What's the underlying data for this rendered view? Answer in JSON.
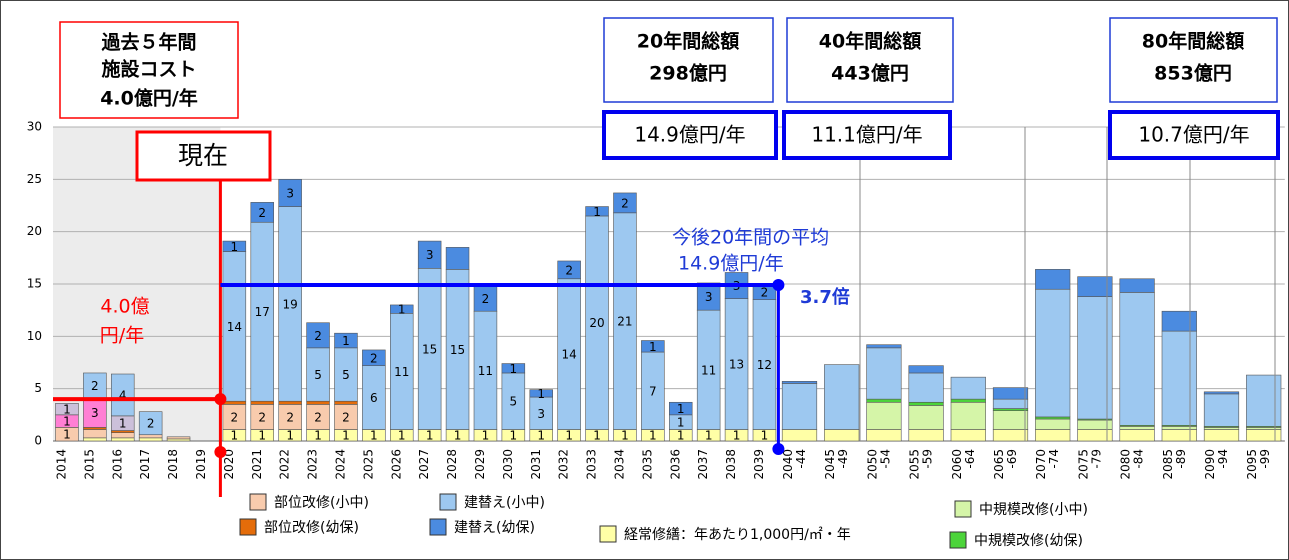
{
  "chart_data": {
    "type": "stacked-bar",
    "categories": [
      [
        "2014"
      ],
      [
        "2015"
      ],
      [
        "2016"
      ],
      [
        "2017"
      ],
      [
        "2018"
      ],
      [
        "2019"
      ],
      [
        "2020"
      ],
      [
        "2021"
      ],
      [
        "2022"
      ],
      [
        "2023"
      ],
      [
        "2024"
      ],
      [
        "2025"
      ],
      [
        "2026"
      ],
      [
        "2027"
      ],
      [
        "2028"
      ],
      [
        "2029"
      ],
      [
        "2030"
      ],
      [
        "2031"
      ],
      [
        "2032"
      ],
      [
        "2033"
      ],
      [
        "2034"
      ],
      [
        "2035"
      ],
      [
        "2036"
      ],
      [
        "2037"
      ],
      [
        "2038"
      ],
      [
        "2039"
      ],
      [
        "2040",
        "-44"
      ],
      [
        "2045",
        "-49"
      ],
      [
        "2050",
        "-54"
      ],
      [
        "2055",
        "-59"
      ],
      [
        "2060",
        "-64"
      ],
      [
        "2065",
        "-69"
      ],
      [
        "2070",
        "-74"
      ],
      [
        "2075",
        "-79"
      ],
      [
        "2080",
        "-84"
      ],
      [
        "2085",
        "-89"
      ],
      [
        "2090",
        "-94"
      ],
      [
        "2095",
        "-99"
      ]
    ],
    "series": [
      {
        "name": "経常修繕：年あたり1,000円/㎡・年",
        "color": "#ffffa6",
        "values": [
          0,
          0.3,
          0.3,
          0.3,
          0.2,
          0,
          1.1,
          1.1,
          1.1,
          1.1,
          1.1,
          1.1,
          1.1,
          1.1,
          1.1,
          1.1,
          1.1,
          1.1,
          1.1,
          1.1,
          1.1,
          1.1,
          1.1,
          1.1,
          1.1,
          1.1,
          1.1,
          1.1,
          1.1,
          1.1,
          1.1,
          1.1,
          1.1,
          1.1,
          1.1,
          1.1,
          1.1,
          1.1
        ],
        "value_labels": [
          null,
          null,
          null,
          null,
          null,
          null,
          "1",
          "1",
          "1",
          "1",
          "1",
          "1",
          "1",
          "1",
          "1",
          "1",
          "1",
          "1",
          "1",
          "1",
          "1",
          "1",
          "1",
          "1",
          "1",
          "1",
          null,
          null,
          null,
          null,
          null,
          null,
          null,
          null,
          null,
          null,
          null,
          null
        ]
      },
      {
        "name": "中規模改修(小中)",
        "color": "#d5f5a8",
        "values": [
          0,
          0,
          0,
          0,
          0,
          0,
          0,
          0,
          0,
          0,
          0,
          0,
          0,
          0,
          0,
          0,
          0,
          0,
          0,
          0,
          0,
          0,
          0,
          0,
          0,
          0,
          0,
          0,
          2.6,
          2.3,
          2.6,
          1.8,
          1.0,
          0.9,
          0.3,
          0.3,
          0.2,
          0.2
        ]
      },
      {
        "name": "中規模改修(幼保)",
        "color": "#4cd43a",
        "values": [
          0,
          0,
          0,
          0,
          0,
          0,
          0,
          0,
          0,
          0,
          0,
          0,
          0,
          0,
          0,
          0,
          0,
          0,
          0,
          0,
          0,
          0,
          0,
          0,
          0,
          0,
          0,
          0,
          0.3,
          0.3,
          0.3,
          0.2,
          0.2,
          0.1,
          0.1,
          0.1,
          0.1,
          0.1
        ]
      },
      {
        "name": "部位改修(小中)",
        "color": "#f8cbad",
        "values": [
          1.3,
          0.8,
          0.5,
          0.3,
          0.2,
          0,
          2.4,
          2.4,
          2.4,
          2.4,
          2.4,
          0,
          0,
          0,
          0,
          0,
          0,
          0,
          0,
          0,
          0,
          0,
          0,
          0,
          0,
          0,
          0,
          0,
          0,
          0,
          0,
          0,
          0,
          0,
          0,
          0,
          0,
          0
        ],
        "value_labels": [
          "1",
          null,
          null,
          null,
          null,
          null,
          "2",
          "2",
          "2",
          "2",
          "2",
          null,
          null,
          null,
          null,
          null,
          null,
          null,
          null,
          null,
          null,
          null,
          null,
          null,
          null,
          null,
          null,
          null,
          null,
          null,
          null,
          null,
          null,
          null,
          null,
          null,
          null,
          null
        ]
      },
      {
        "name": "部位改修(幼保)",
        "color": "#e46c0a",
        "values": [
          0,
          0.2,
          0.2,
          0,
          0,
          0,
          0.3,
          0.3,
          0.3,
          0.3,
          0.3,
          0,
          0,
          0,
          0,
          0,
          0,
          0,
          0,
          0,
          0,
          0,
          0,
          0,
          0,
          0,
          0,
          0,
          0,
          0,
          0,
          0,
          0,
          0,
          0,
          0,
          0,
          0
        ]
      },
      {
        "color": "#ff7fd4",
        "values": [
          1.2,
          2.8,
          0,
          0,
          0,
          0,
          0,
          0,
          0,
          0,
          0,
          0,
          0,
          0,
          0,
          0,
          0,
          0,
          0,
          0,
          0,
          0,
          0,
          0,
          0,
          0,
          0,
          0,
          0,
          0,
          0,
          0,
          0,
          0,
          0,
          0,
          0,
          0
        ],
        "value_labels": [
          "1",
          "3",
          null,
          null,
          null,
          null,
          null,
          null,
          null,
          null,
          null,
          null,
          null,
          null,
          null,
          null,
          null,
          null,
          null,
          null,
          null,
          null,
          null,
          null,
          null,
          null,
          null,
          null,
          null,
          null,
          null,
          null,
          null,
          null,
          null,
          null,
          null,
          null
        ]
      },
      {
        "color": "#ccc0da",
        "values": [
          1.1,
          0,
          1.4,
          0,
          0,
          0,
          0,
          0,
          0,
          0,
          0,
          0,
          0,
          0,
          0,
          0,
          0,
          0,
          0,
          0,
          0,
          0,
          0,
          0,
          0,
          0,
          0,
          0,
          0,
          0,
          0,
          0,
          0,
          0,
          0,
          0,
          0,
          0
        ],
        "value_labels": [
          "1",
          null,
          "1",
          null,
          null,
          null,
          null,
          null,
          null,
          null,
          null,
          null,
          null,
          null,
          null,
          null,
          null,
          null,
          null,
          null,
          null,
          null,
          null,
          null,
          null,
          null,
          null,
          null,
          null,
          null,
          null,
          null,
          null,
          null,
          null,
          null,
          null,
          null
        ]
      },
      {
        "name": "建替え(小中)",
        "color": "#9dc8f0",
        "values": [
          0,
          2.4,
          4.0,
          2.2,
          0,
          0,
          14.3,
          17.1,
          18.6,
          5.1,
          5.1,
          6.1,
          11.1,
          15.4,
          15.3,
          11.3,
          5.4,
          3.1,
          14.4,
          20.4,
          20.7,
          7.4,
          1.4,
          11.4,
          12.5,
          12.4,
          4.4,
          6.2,
          4.9,
          2.8,
          2.1,
          0.9,
          12.2,
          11.7,
          12.7,
          9.0,
          3.1,
          4.9
        ],
        "value_labels": [
          null,
          "2",
          "4",
          "2",
          null,
          null,
          "14",
          "17",
          "19",
          "5",
          "5",
          "6",
          "11",
          "15",
          "15",
          "11",
          "5",
          "3",
          "14",
          "20",
          "21",
          "7",
          "1",
          "11",
          "13",
          "12",
          null,
          null,
          null,
          null,
          null,
          null,
          null,
          null,
          null,
          null,
          null,
          null
        ]
      },
      {
        "name": "建替え(幼保)",
        "color": "#4b8be0",
        "values": [
          0,
          0,
          0,
          0,
          0,
          0,
          1.0,
          1.9,
          2.6,
          2.4,
          1.4,
          1.5,
          0.8,
          2.6,
          2.1,
          2.4,
          0.9,
          0.7,
          1.7,
          0.9,
          1.9,
          1.1,
          1.2,
          2.6,
          2.5,
          1.5,
          0.2,
          0,
          0.3,
          0.7,
          0,
          1.1,
          1.9,
          1.9,
          1.3,
          1.9,
          0.2,
          0
        ],
        "value_labels": [
          null,
          null,
          null,
          null,
          null,
          null,
          "1",
          "2",
          "3",
          "2",
          "1",
          "2",
          "1",
          "3",
          null,
          "2",
          "1",
          "1",
          "2",
          "1",
          "2",
          "1",
          "1",
          "3",
          "3",
          "2",
          null,
          null,
          null,
          null,
          null,
          null,
          null,
          null,
          null,
          null,
          null,
          null
        ]
      }
    ],
    "ylim": [
      0,
      30
    ],
    "yticks": [
      0,
      5,
      10,
      15,
      20,
      25,
      30
    ],
    "grid": true,
    "reference_lines": [
      {
        "value": 4.0,
        "color": "#ff0000"
      },
      {
        "value": 14.9,
        "color": "#0000ff"
      }
    ],
    "annotations": {
      "past_box": [
        "過去５年間",
        "施設コスト",
        "4.0億円/年"
      ],
      "now": "現在",
      "past_rate": [
        "4.0億",
        "円/年"
      ],
      "totals": [
        {
          "title": "20年間総額",
          "amount": "298億円",
          "per_year": "14.9億円/年"
        },
        {
          "title": "40年間総額",
          "amount": "443億円",
          "per_year": "11.1億円/年"
        },
        {
          "title": "80年間総額",
          "amount": "853億円",
          "per_year": "10.7億円/年"
        }
      ],
      "average": [
        "今後20年間の平均",
        "14.9億円/年"
      ],
      "ratio": "3.7倍"
    }
  }
}
